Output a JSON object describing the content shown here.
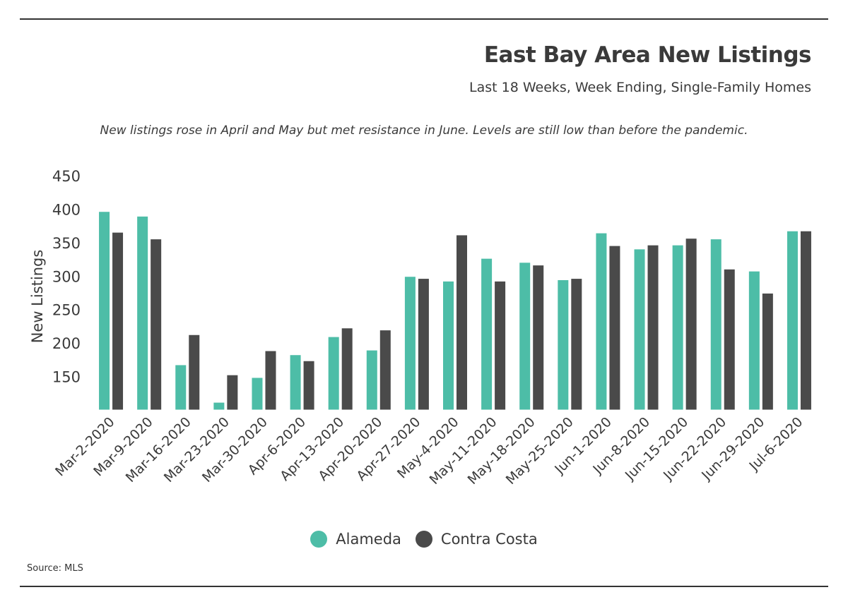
{
  "chart_data": {
    "type": "bar",
    "title": "East Bay Area New Listings",
    "subtitle": "Last 18 Weeks, Week Ending, Single-Family Homes",
    "annotation": "New listings rose in April and May but met resistance in June. Levels are still low than before the pandemic.",
    "ylabel": "New Listings",
    "xlabel": "",
    "ylim": [
      100,
      450
    ],
    "yticks": [
      150,
      200,
      250,
      300,
      350,
      400,
      450
    ],
    "categories": [
      "Mar-2-2020",
      "Mar-9-2020",
      "Mar-16-2020",
      "Mar-23-2020",
      "Mar-30-2020",
      "Apr-6-2020",
      "Apr-13-2020",
      "Apr-20-2020",
      "Apr-27-2020",
      "May-4-2020",
      "May-11-2020",
      "May-18-2020",
      "May-25-2020",
      "Jun-1-2020",
      "Jun-8-2020",
      "Jun-15-2020",
      "Jun-22-2020",
      "Jun-29-2020",
      "Jul-6-2020"
    ],
    "series": [
      {
        "name": "Alameda",
        "color": "#4dbda7",
        "values": [
          396,
          389,
          167,
          111,
          148,
          182,
          209,
          189,
          299,
          292,
          326,
          320,
          294,
          364,
          340,
          346,
          355,
          307,
          367
        ]
      },
      {
        "name": "Contra Costa",
        "color": "#4a4a4a",
        "values": [
          365,
          355,
          212,
          152,
          188,
          173,
          222,
          219,
          296,
          361,
          292,
          316,
          296,
          345,
          346,
          356,
          310,
          274,
          367
        ]
      }
    ],
    "grid": false,
    "legend_position": "bottom-center"
  },
  "source": "Source: MLS"
}
